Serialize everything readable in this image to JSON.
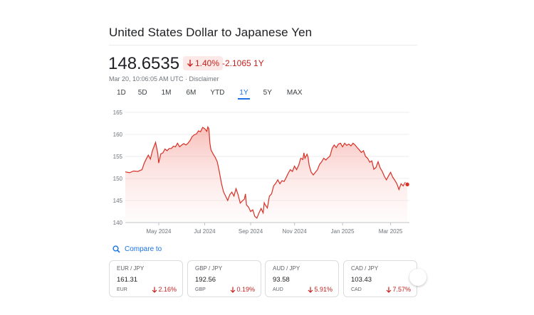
{
  "header": {
    "title": "United States Dollar to Japanese Yen",
    "price": "148.6535",
    "change_percent": "1.40%",
    "change_abs": "-2.1065 1Y",
    "timestamp": "Mar 20, 10:06:05 AM UTC · Disclaimer"
  },
  "tabs": [
    {
      "label": "1D"
    },
    {
      "label": "5D"
    },
    {
      "label": "1M"
    },
    {
      "label": "6M"
    },
    {
      "label": "YTD"
    },
    {
      "label": "1Y",
      "active": true
    },
    {
      "label": "5Y"
    },
    {
      "label": "MAX"
    }
  ],
  "colors": {
    "negative": "#c5221f",
    "negative_bg": "#fce8e6",
    "accent": "#1a73e8",
    "line": "#d93025"
  },
  "chart_data": {
    "type": "area",
    "y_ticks": [
      140,
      145,
      150,
      155,
      160,
      165
    ],
    "ylim": [
      140,
      165
    ],
    "x_labels": [
      "May 2024",
      "Jul 2024",
      "Sep 2024",
      "Nov 2024",
      "Jan 2025",
      "Mar 2025"
    ],
    "x_label_positions": [
      0.16,
      0.38,
      0.6,
      0.81,
      1.04,
      1.27
    ],
    "xlim": [
      0,
      1.36
    ],
    "grid": true,
    "series": [
      {
        "values": [
          [
            0.0,
            151.5
          ],
          [
            0.02,
            151.3
          ],
          [
            0.04,
            151.7
          ],
          [
            0.06,
            151.6
          ],
          [
            0.08,
            152.0
          ],
          [
            0.09,
            153.4
          ],
          [
            0.1,
            154.4
          ],
          [
            0.11,
            155.3
          ],
          [
            0.12,
            154.4
          ],
          [
            0.13,
            156.3
          ],
          [
            0.14,
            157.6
          ],
          [
            0.145,
            158.2
          ],
          [
            0.15,
            157.0
          ],
          [
            0.155,
            155.8
          ],
          [
            0.16,
            153.5
          ],
          [
            0.17,
            155.6
          ],
          [
            0.18,
            155.8
          ],
          [
            0.19,
            156.7
          ],
          [
            0.2,
            156.3
          ],
          [
            0.21,
            156.8
          ],
          [
            0.22,
            156.8
          ],
          [
            0.23,
            157.3
          ],
          [
            0.24,
            157.2
          ],
          [
            0.25,
            158.0
          ],
          [
            0.26,
            157.2
          ],
          [
            0.27,
            157.6
          ],
          [
            0.28,
            157.9
          ],
          [
            0.29,
            157.6
          ],
          [
            0.3,
            158.0
          ],
          [
            0.31,
            158.6
          ],
          [
            0.32,
            159.5
          ],
          [
            0.33,
            159.9
          ],
          [
            0.34,
            160.1
          ],
          [
            0.35,
            160.8
          ],
          [
            0.36,
            160.6
          ],
          [
            0.37,
            161.6
          ],
          [
            0.38,
            161.3
          ],
          [
            0.39,
            160.7
          ],
          [
            0.395,
            161.7
          ],
          [
            0.4,
            161.3
          ],
          [
            0.405,
            158.0
          ],
          [
            0.41,
            156.5
          ],
          [
            0.42,
            155.6
          ],
          [
            0.43,
            154.8
          ],
          [
            0.44,
            153.8
          ],
          [
            0.45,
            151.6
          ],
          [
            0.46,
            148.9
          ],
          [
            0.47,
            147.0
          ],
          [
            0.48,
            146.0
          ],
          [
            0.49,
            145.0
          ],
          [
            0.5,
            146.3
          ],
          [
            0.51,
            146.9
          ],
          [
            0.52,
            146.0
          ],
          [
            0.53,
            147.7
          ],
          [
            0.54,
            146.3
          ],
          [
            0.55,
            144.4
          ],
          [
            0.56,
            144.9
          ],
          [
            0.57,
            145.3
          ],
          [
            0.575,
            146.5
          ],
          [
            0.58,
            144.0
          ],
          [
            0.59,
            143.5
          ],
          [
            0.6,
            142.5
          ],
          [
            0.61,
            142.9
          ],
          [
            0.62,
            141.4
          ],
          [
            0.63,
            141.0
          ],
          [
            0.64,
            142.2
          ],
          [
            0.65,
            143.2
          ],
          [
            0.66,
            142.2
          ],
          [
            0.665,
            144.5
          ],
          [
            0.67,
            144.0
          ],
          [
            0.68,
            143.3
          ],
          [
            0.69,
            146.0
          ],
          [
            0.7,
            146.5
          ],
          [
            0.71,
            148.3
          ],
          [
            0.72,
            148.9
          ],
          [
            0.73,
            149.7
          ],
          [
            0.74,
            148.8
          ],
          [
            0.75,
            149.5
          ],
          [
            0.76,
            149.3
          ],
          [
            0.77,
            150.2
          ],
          [
            0.78,
            151.2
          ],
          [
            0.79,
            152.0
          ],
          [
            0.8,
            151.6
          ],
          [
            0.81,
            152.8
          ],
          [
            0.82,
            152.0
          ],
          [
            0.83,
            153.0
          ],
          [
            0.84,
            154.6
          ],
          [
            0.85,
            154.3
          ],
          [
            0.855,
            155.8
          ],
          [
            0.86,
            154.6
          ],
          [
            0.87,
            155.5
          ],
          [
            0.875,
            154.8
          ],
          [
            0.88,
            153.0
          ],
          [
            0.89,
            151.4
          ],
          [
            0.9,
            150.8
          ],
          [
            0.91,
            151.4
          ],
          [
            0.92,
            152.0
          ],
          [
            0.93,
            153.2
          ],
          [
            0.94,
            153.8
          ],
          [
            0.95,
            154.6
          ],
          [
            0.96,
            154.2
          ],
          [
            0.97,
            154.7
          ],
          [
            0.98,
            155.1
          ],
          [
            0.99,
            156.8
          ],
          [
            1.0,
            157.6
          ],
          [
            1.01,
            157.0
          ],
          [
            1.02,
            157.8
          ],
          [
            1.03,
            158.0
          ],
          [
            1.04,
            157.2
          ],
          [
            1.05,
            158.0
          ],
          [
            1.06,
            157.5
          ],
          [
            1.07,
            157.8
          ],
          [
            1.08,
            157.4
          ],
          [
            1.09,
            158.0
          ],
          [
            1.1,
            157.6
          ],
          [
            1.11,
            157.0
          ],
          [
            1.12,
            156.5
          ],
          [
            1.13,
            155.9
          ],
          [
            1.14,
            156.3
          ],
          [
            1.15,
            155.0
          ],
          [
            1.16,
            154.6
          ],
          [
            1.17,
            153.7
          ],
          [
            1.18,
            154.0
          ],
          [
            1.19,
            152.1
          ],
          [
            1.2,
            152.5
          ],
          [
            1.21,
            153.8
          ],
          [
            1.22,
            152.4
          ],
          [
            1.23,
            151.6
          ],
          [
            1.24,
            150.5
          ],
          [
            1.25,
            149.7
          ],
          [
            1.26,
            150.6
          ],
          [
            1.27,
            151.4
          ],
          [
            1.28,
            150.3
          ],
          [
            1.29,
            149.6
          ],
          [
            1.3,
            148.8
          ],
          [
            1.31,
            147.5
          ],
          [
            1.32,
            148.8
          ],
          [
            1.33,
            148.3
          ],
          [
            1.34,
            149.1
          ],
          [
            1.35,
            148.65
          ]
        ]
      }
    ]
  },
  "compare": {
    "label": "Compare to"
  },
  "cards": [
    {
      "pair": "EUR / JPY",
      "rate": "161.31",
      "currency": "EUR",
      "change": "2.16%"
    },
    {
      "pair": "GBP / JPY",
      "rate": "192.56",
      "currency": "GBP",
      "change": "0.19%"
    },
    {
      "pair": "AUD / JPY",
      "rate": "93.58",
      "currency": "AUD",
      "change": "5.91%"
    },
    {
      "pair": "CAD / JPY",
      "rate": "103.43",
      "currency": "CAD",
      "change": "7.57%"
    }
  ]
}
